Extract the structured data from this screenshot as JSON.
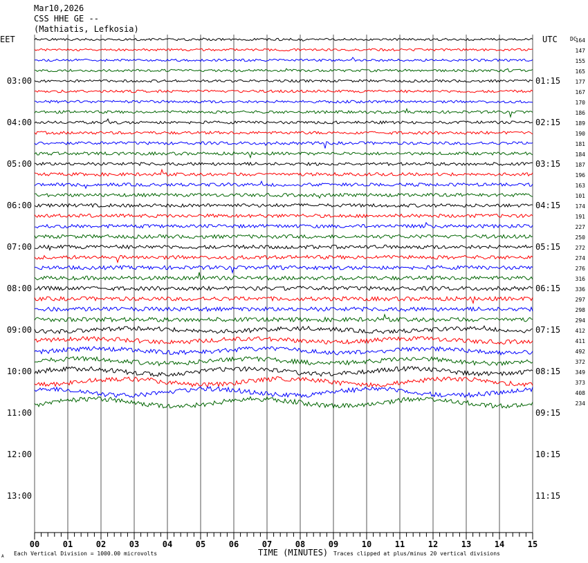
{
  "header": {
    "date": "Mar10,2026",
    "station": "CSS HHE GE --",
    "location": "(Mathiatis, Lefkosia)"
  },
  "labels": {
    "left_tz": "EET",
    "right_tz": "UTC",
    "dc": "DC",
    "x_axis_title": "TIME (MINUTES)",
    "footer_left": "Each Vertical Division = 1000.00 microvolts",
    "footer_right": "Traces clipped at plus/minus 20 vertical divisions",
    "corner_mark": "A"
  },
  "colors": {
    "trace_cycle": [
      "#000000",
      "#ff0000",
      "#0000ff",
      "#006400"
    ],
    "grid": "#000000"
  },
  "chart_data": {
    "type": "line",
    "title": "CSS HHE GE --",
    "xlabel": "TIME (MINUTES)",
    "xlim": [
      0,
      15
    ],
    "x_ticks": [
      "00",
      "01",
      "02",
      "03",
      "04",
      "05",
      "06",
      "07",
      "08",
      "09",
      "10",
      "11",
      "12",
      "13",
      "14",
      "15"
    ],
    "left_hour_labels": [
      "03:00",
      "04:00",
      "05:00",
      "06:00",
      "07:00",
      "08:00",
      "09:00",
      "10:00",
      "11:00",
      "12:00",
      "13:00"
    ],
    "right_hour_labels": [
      "01:15",
      "02:15",
      "03:15",
      "04:15",
      "05:15",
      "06:15",
      "07:15",
      "08:15",
      "09:15",
      "10:15",
      "11:15"
    ],
    "rows_per_hour": 4,
    "dc_offsets": [
      164,
      147,
      155,
      165,
      177,
      167,
      170,
      186,
      189,
      190,
      181,
      184,
      187,
      196,
      163,
      101,
      174,
      191,
      227,
      250,
      272,
      274,
      276,
      316,
      336,
      297,
      298,
      294,
      412,
      411,
      492,
      372,
      349,
      373,
      408,
      234
    ],
    "trace_count": 36
  }
}
